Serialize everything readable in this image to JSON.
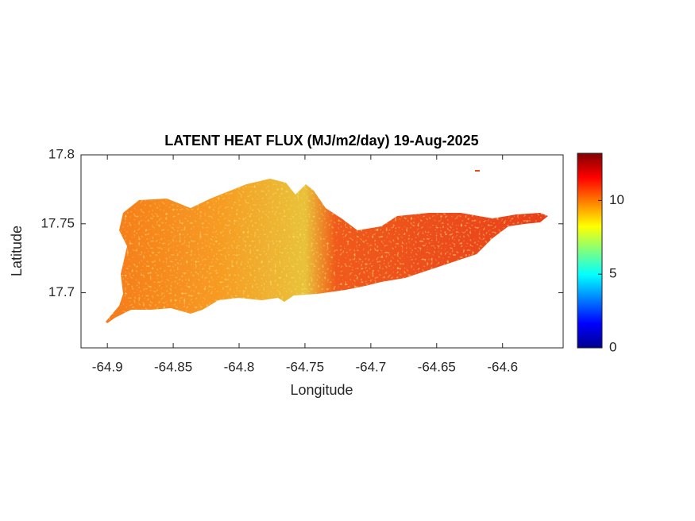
{
  "chart_data": {
    "type": "heatmap",
    "title": "LATENT HEAT FLUX (MJ/m2/day) 19-Aug-2025",
    "xlabel": "Longitude",
    "ylabel": "Latitude",
    "xlim": [
      -64.92,
      -64.554
    ],
    "xticks": [
      -64.9,
      -64.85,
      -64.8,
      -64.75,
      -64.7,
      -64.65,
      -64.6
    ],
    "ylim": [
      17.66,
      17.8
    ],
    "yticks": [
      17.7,
      17.75,
      17.8
    ],
    "colorbar": {
      "lim": [
        0,
        13.2
      ],
      "ticks": [
        0,
        5,
        10
      ]
    }
  }
}
